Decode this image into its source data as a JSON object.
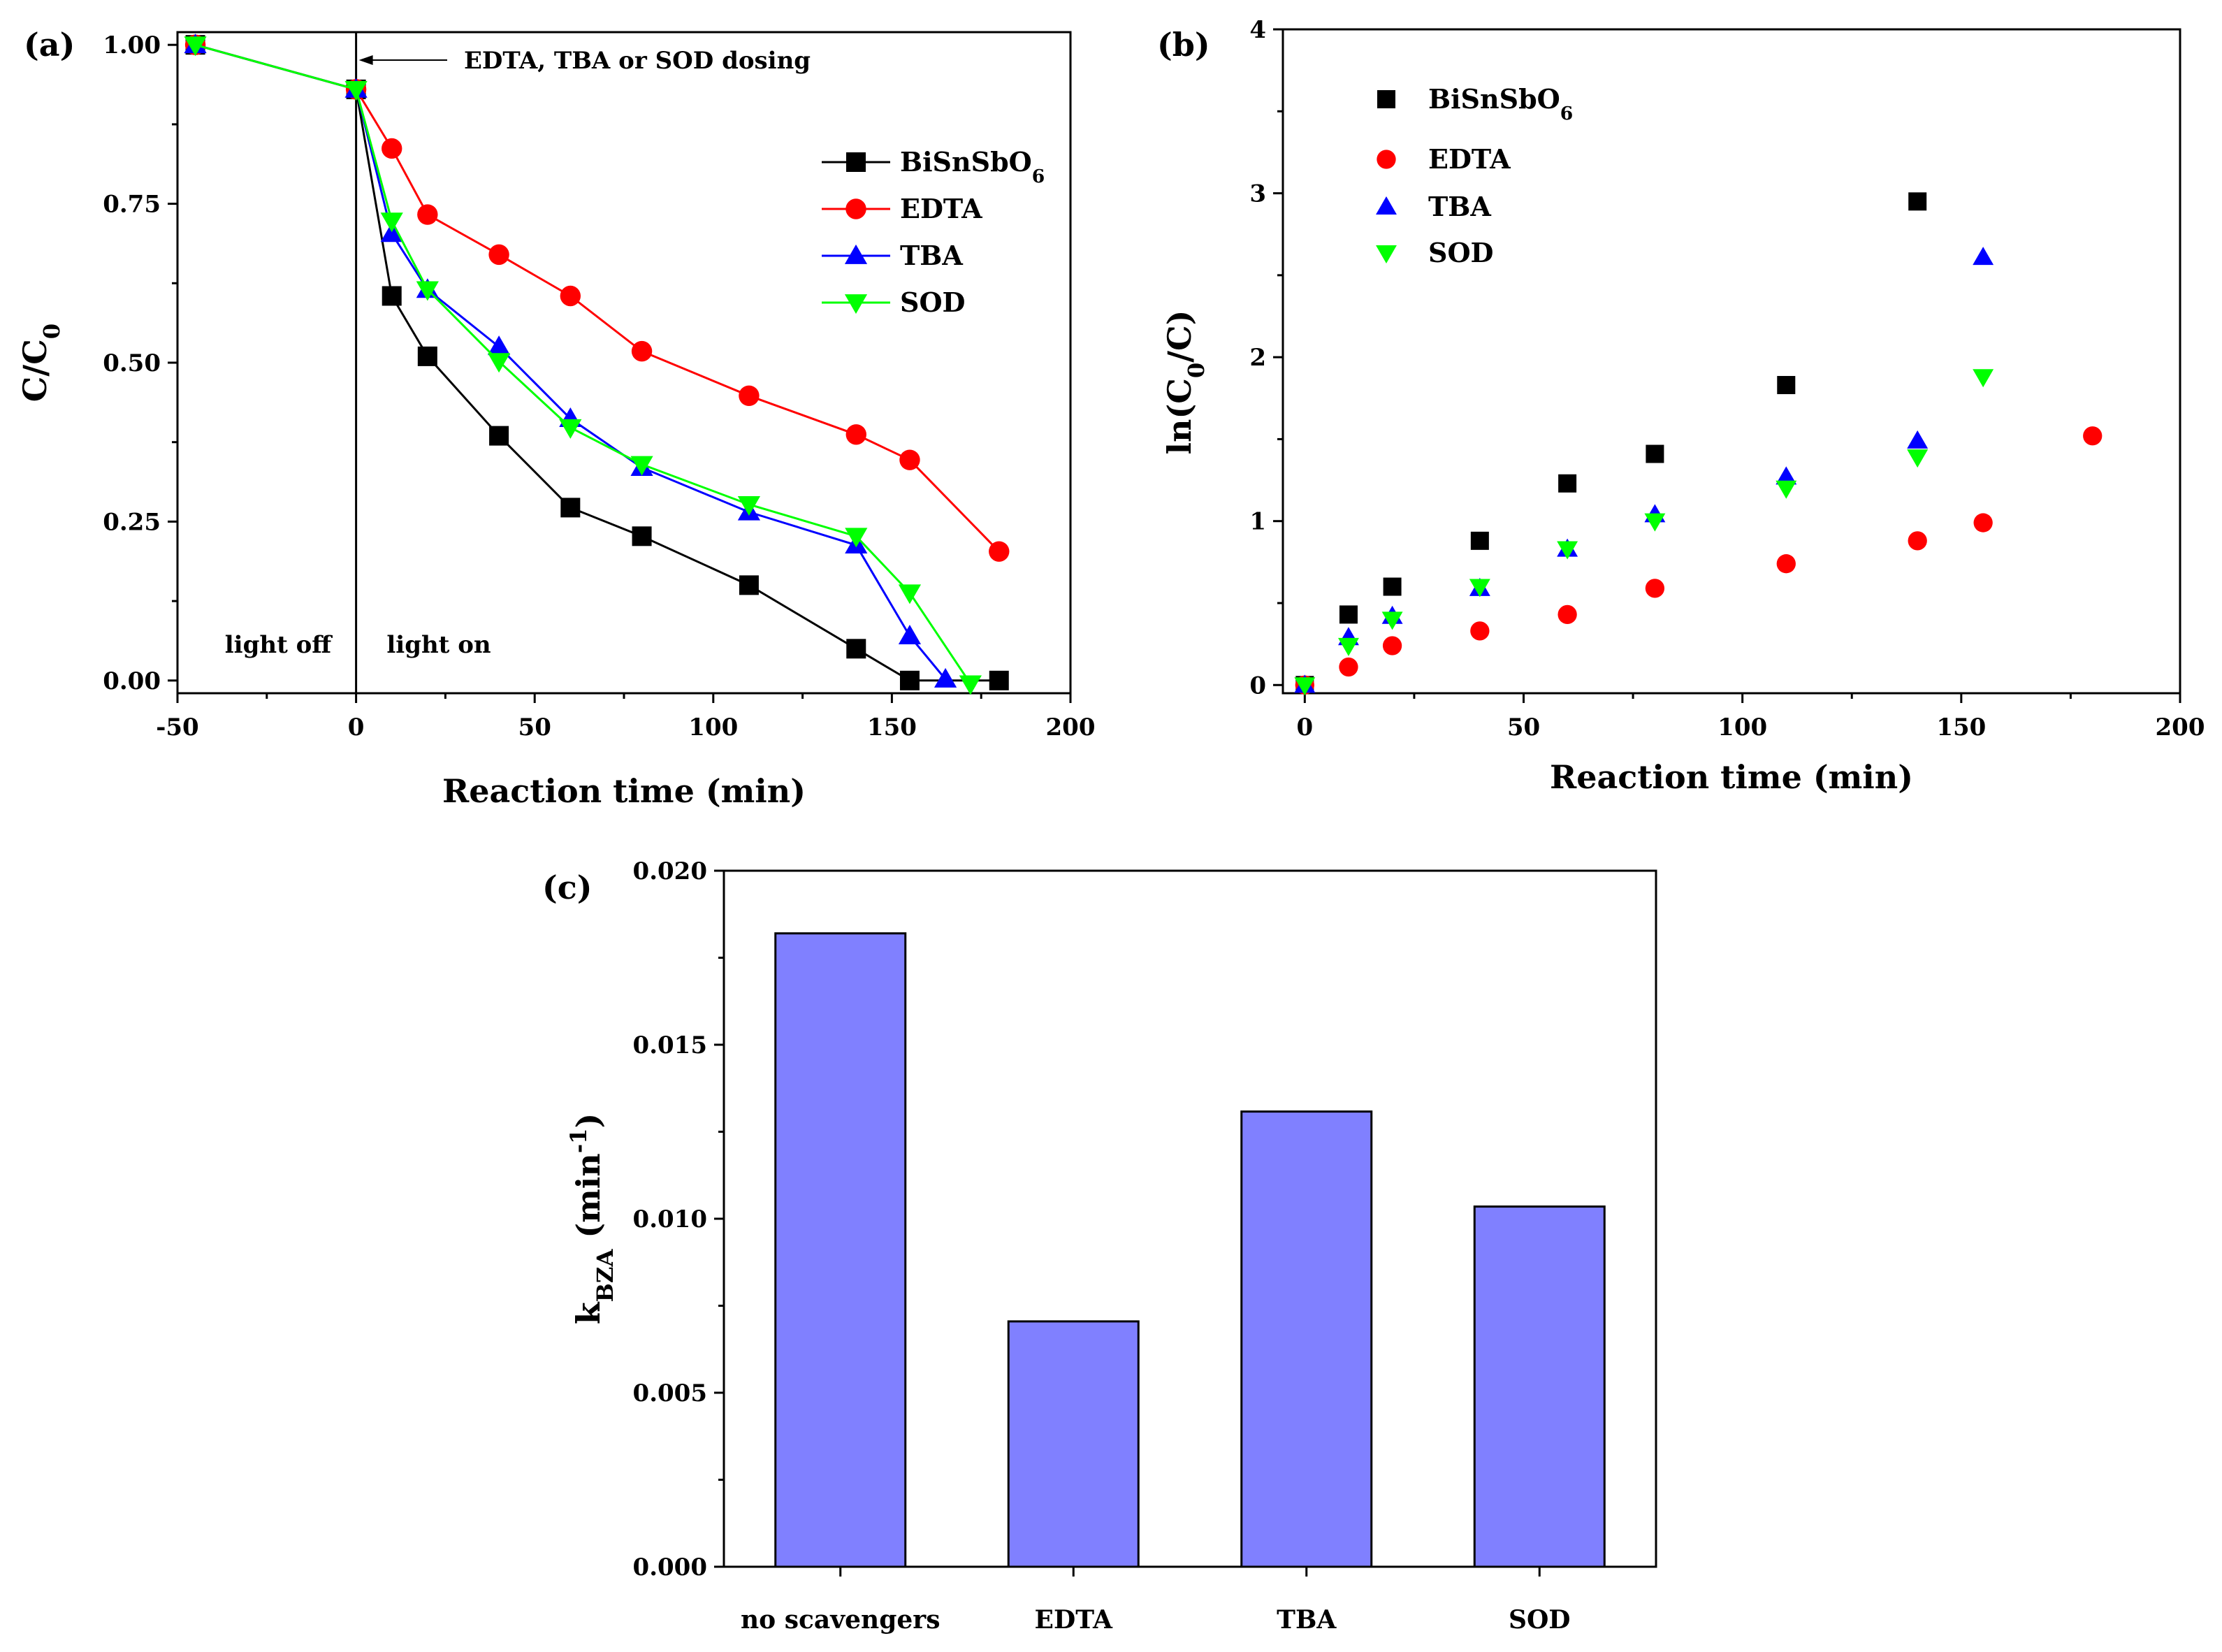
{
  "chart_data": [
    {
      "id": "a",
      "type": "line",
      "panel_label": "(a)",
      "xlabel": "Reaction time (min)",
      "ylabel": "C/C",
      "ylabel_sub": "0",
      "xlim": [
        -50,
        200
      ],
      "ylim": [
        -0.02,
        1.02
      ],
      "x_ticks": [
        -50,
        0,
        50,
        100,
        150,
        200
      ],
      "x_tick_labels": [
        "-50",
        "0",
        "50",
        "100",
        "150",
        "200"
      ],
      "y_ticks": [
        0,
        0.25,
        0.5,
        0.75,
        1.0
      ],
      "y_tick_labels": [
        "0.00",
        "0.25",
        "0.50",
        "0.75",
        "1.00"
      ],
      "annotation": "EDTA, TBA or SOD dosing",
      "region_labels": [
        "light off",
        "light on"
      ],
      "series": [
        {
          "name": "BiSnSbO",
          "sub": "6",
          "color": "#000000",
          "marker": "square",
          "x": [
            -45,
            0,
            10,
            20,
            40,
            60,
            80,
            110,
            140,
            155,
            180
          ],
          "y": [
            1.0,
            0.93,
            0.605,
            0.51,
            0.385,
            0.272,
            0.227,
            0.15,
            0.05,
            0.0,
            0.0
          ]
        },
        {
          "name": "EDTA",
          "sub": "",
          "color": "#ff0000",
          "marker": "circle",
          "x": [
            -45,
            0,
            10,
            20,
            40,
            60,
            80,
            110,
            140,
            155,
            180
          ],
          "y": [
            1.0,
            0.93,
            0.837,
            0.733,
            0.67,
            0.605,
            0.518,
            0.448,
            0.387,
            0.347,
            0.203
          ]
        },
        {
          "name": "TBA",
          "sub": "",
          "color": "#0000ff",
          "marker": "triangle-up",
          "x": [
            -45,
            0,
            10,
            20,
            40,
            60,
            80,
            110,
            140,
            155,
            165
          ],
          "y": [
            1.0,
            0.93,
            0.703,
            0.615,
            0.525,
            0.412,
            0.335,
            0.265,
            0.213,
            0.07,
            0.002
          ]
        },
        {
          "name": "SOD",
          "sub": "",
          "color": "#00ff00",
          "marker": "triangle-down",
          "x": [
            -45,
            0,
            10,
            20,
            40,
            60,
            80,
            110,
            140,
            155,
            172
          ],
          "y": [
            1.0,
            0.93,
            0.723,
            0.615,
            0.502,
            0.398,
            0.34,
            0.277,
            0.227,
            0.138,
            -0.005
          ]
        }
      ]
    },
    {
      "id": "b",
      "type": "scatter",
      "panel_label": "(b)",
      "xlabel": "Reaction time (min)",
      "ylabel": "ln(C",
      "ylabel_sub": "0",
      "ylabel_tail": "/C)",
      "xlim": [
        -5,
        200
      ],
      "ylim": [
        -0.05,
        4
      ],
      "x_ticks": [
        0,
        50,
        100,
        150,
        200
      ],
      "x_tick_labels": [
        "0",
        "50",
        "100",
        "150",
        "200"
      ],
      "y_ticks": [
        0,
        1,
        2,
        3,
        4
      ],
      "y_tick_labels": [
        "0",
        "1",
        "2",
        "3",
        "4"
      ],
      "series": [
        {
          "name": "BiSnSbO",
          "sub": "6",
          "color": "#000000",
          "marker": "square",
          "x": [
            0,
            10,
            20,
            40,
            60,
            80,
            110,
            140
          ],
          "y": [
            0.0,
            0.43,
            0.6,
            0.88,
            1.23,
            1.41,
            1.83,
            2.95
          ]
        },
        {
          "name": "EDTA",
          "sub": "",
          "color": "#ff0000",
          "marker": "circle",
          "x": [
            0,
            10,
            20,
            40,
            60,
            80,
            110,
            140,
            155,
            180
          ],
          "y": [
            0.0,
            0.11,
            0.24,
            0.33,
            0.43,
            0.59,
            0.74,
            0.88,
            0.99,
            1.52
          ]
        },
        {
          "name": "TBA",
          "sub": "",
          "color": "#0000ff",
          "marker": "triangle-up",
          "x": [
            0,
            10,
            20,
            40,
            60,
            80,
            110,
            140,
            155
          ],
          "y": [
            0.0,
            0.29,
            0.42,
            0.59,
            0.83,
            1.04,
            1.27,
            1.49,
            2.61
          ]
        },
        {
          "name": "SOD",
          "sub": "",
          "color": "#00ff00",
          "marker": "triangle-down",
          "x": [
            0,
            10,
            20,
            40,
            60,
            80,
            110,
            140,
            155
          ],
          "y": [
            0.0,
            0.24,
            0.4,
            0.6,
            0.83,
            1.0,
            1.2,
            1.39,
            1.88
          ]
        }
      ]
    },
    {
      "id": "c",
      "type": "bar",
      "panel_label": "(c)",
      "ylabel": "k",
      "ylabel_sub": "BZA",
      "ylabel_tail": " (min",
      "ylabel_sup": "-1",
      "ylabel_close": ")",
      "ylim": [
        0,
        0.02
      ],
      "y_ticks": [
        0,
        0.005,
        0.01,
        0.015,
        0.02
      ],
      "y_tick_labels": [
        "0.000",
        "0.005",
        "0.010",
        "0.015",
        "0.020"
      ],
      "categories": [
        "no scavengers",
        "EDTA",
        "TBA",
        "SOD"
      ],
      "values": [
        0.0182,
        0.00705,
        0.01308,
        0.01035
      ],
      "bar_color": "#8080ff"
    }
  ]
}
